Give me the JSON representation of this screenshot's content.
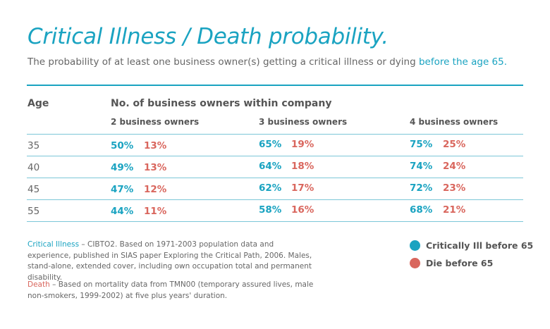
{
  "header": {
    "title": "Critical Illness / Death probability.",
    "subtitle_prefix": "The probability of at least one business owner(s) getting a critical illness or dying ",
    "subtitle_highlight": "before the age 65."
  },
  "table": {
    "age_header": "Age",
    "group_header": "No. of business owners within company",
    "columns": [
      "2 business owners",
      "3 business owners",
      "4 business owners"
    ],
    "rows": [
      {
        "age": "35",
        "values": [
          [
            "50%",
            "13%"
          ],
          [
            "65%",
            "19%"
          ],
          [
            "75%",
            "25%"
          ]
        ]
      },
      {
        "age": "40",
        "values": [
          [
            "49%",
            "13%"
          ],
          [
            "64%",
            "18%"
          ],
          [
            "74%",
            "24%"
          ]
        ]
      },
      {
        "age": "45",
        "values": [
          [
            "47%",
            "12%"
          ],
          [
            "62%",
            "17%"
          ],
          [
            "72%",
            "23%"
          ]
        ]
      },
      {
        "age": "55",
        "values": [
          [
            "44%",
            "11%"
          ],
          [
            "58%",
            "16%"
          ],
          [
            "68%",
            "21%"
          ]
        ]
      }
    ]
  },
  "notes": {
    "illness_label": "Critical Illness",
    "illness_text": " – CIBTO2. Based on 1971-2003 population data and experience, published in SIAS paper Exploring the Critical Path, 2006. Males, stand-alone, extended cover, including own occupation total and permanent disability.",
    "death_label": "Death",
    "death_text": " – Based on mortality data from TMN00 (temporary assured lives, male non-smokers, 1999-2002) at five plus years' duration."
  },
  "legend": {
    "items": [
      {
        "label": "Critically Ill before 65",
        "color": "#1aa3c1"
      },
      {
        "label": "Die before 65",
        "color": "#d9665d"
      }
    ]
  },
  "colors": {
    "ill": "#1aa3c1",
    "die": "#d9665d"
  }
}
